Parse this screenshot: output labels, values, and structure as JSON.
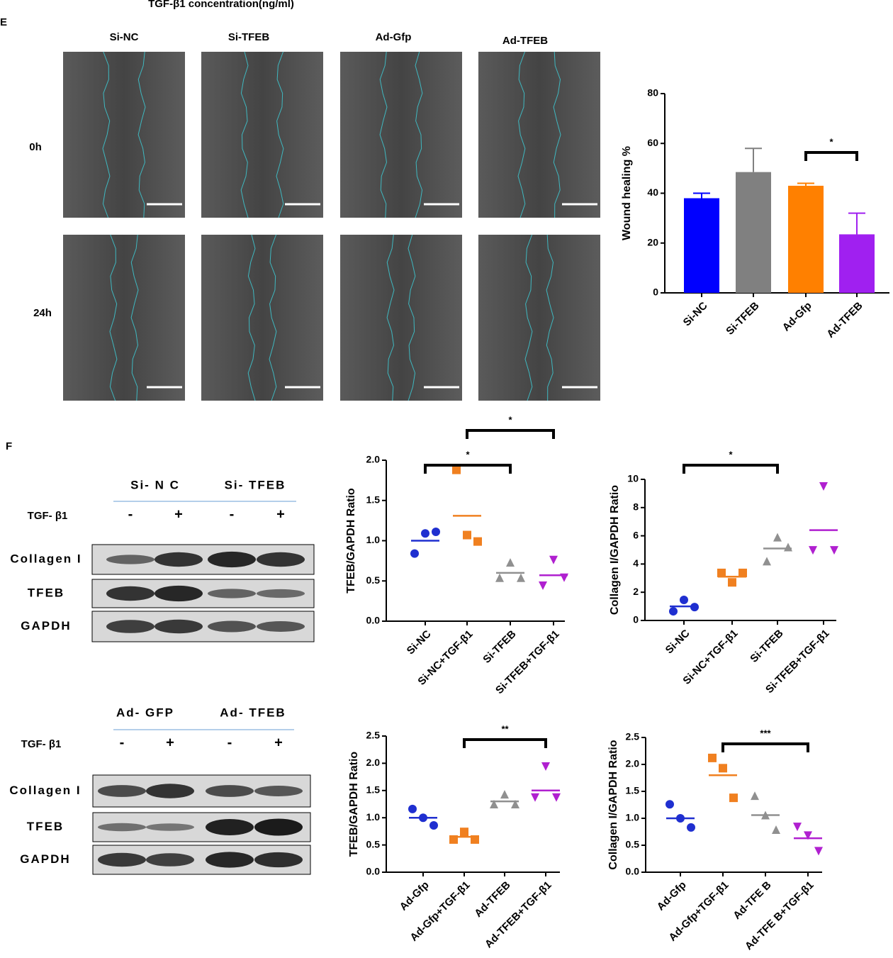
{
  "figure": {
    "top_caption": "TGF-β1 concentration(ng/ml)",
    "panel_e": {
      "label": "E",
      "columns": [
        "Si-NC",
        "Si-TFEB",
        "Ad-Gfp",
        "Ad-TFEB"
      ],
      "rows": [
        "0h",
        "24h"
      ]
    },
    "panel_f": {
      "label": "F",
      "blots": [
        {
          "groups": [
            "Si- N C",
            "Si- TFEB"
          ],
          "treatment": "TGF- β1",
          "signs": [
            "-",
            "+",
            "-",
            "+"
          ],
          "rows": [
            "Collagen I",
            "TFEB",
            "GAPDH"
          ]
        },
        {
          "groups": [
            "Ad- GFP",
            "Ad- TFEB"
          ],
          "treatment": "TGF- β1",
          "signs": [
            "-",
            "+",
            "-",
            "+"
          ],
          "rows": [
            "Collagen I",
            "TFEB",
            "GAPDH"
          ]
        }
      ]
    }
  },
  "chart_data": [
    {
      "type": "bar",
      "y_label": "Wound healing %",
      "categories": [
        "Si-NC",
        "Si-TFEB",
        "Ad-Gfp",
        "Ad-TFEB"
      ],
      "values": [
        38,
        48.5,
        43,
        23.5
      ],
      "errors": [
        2,
        9.5,
        1,
        8.5
      ],
      "colors": [
        "#0000ff",
        "#808080",
        "#ff8000",
        "#a020f0"
      ],
      "ylim": [
        0,
        80
      ],
      "yticks": [
        0,
        20,
        40,
        60,
        80
      ],
      "annotations": [
        {
          "text": "*",
          "between": [
            "Ad-Gfp",
            "Ad-TFEB"
          ]
        }
      ]
    },
    {
      "type": "dot",
      "y_label": "TFEB/GAPDH Ratio",
      "categories": [
        "Si-NC",
        "Si-NC+TGF-β1",
        "Si-TFEB",
        "Si-TFEB+TGF-β1"
      ],
      "points": [
        [
          0.84,
          1.09,
          1.11
        ],
        [
          1.88,
          1.07,
          0.99
        ],
        [
          0.54,
          0.73,
          0.54
        ],
        [
          0.44,
          0.76,
          0.54
        ]
      ],
      "means": [
        1.0,
        1.31,
        0.6,
        0.57
      ],
      "colors": [
        "#1f2fd0",
        "#f08020",
        "#909090",
        "#b020d0"
      ],
      "markers": [
        "circle",
        "square",
        "triangle",
        "triangle-down"
      ],
      "ylim": [
        0,
        2
      ],
      "yticks": [
        {
          "value": 0,
          "label": "0.0"
        },
        {
          "value": 0.5,
          "label": "0.5"
        },
        {
          "value": 1,
          "label": "1.0"
        },
        {
          "value": 1.5,
          "label": "1.5"
        },
        {
          "value": 2,
          "label": "2.0"
        }
      ],
      "annotations": [
        {
          "text": "*",
          "between": [
            "Si-NC",
            "Si-TFEB"
          ]
        },
        {
          "text": "*",
          "between": [
            "Si-NC+TGF-β1",
            "Si-TFEB+TGF-β1"
          ]
        }
      ]
    },
    {
      "type": "dot",
      "y_label": "Collagen I/GAPDH Ratio",
      "categories": [
        "Si-NC",
        "Si-NC+TGF-β1",
        "Si-TFEB",
        "Si-TFEB+TGF-β1"
      ],
      "points": [
        [
          0.65,
          1.46,
          0.95
        ],
        [
          3.37,
          2.7,
          3.37
        ],
        [
          4.2,
          5.9,
          5.2
        ],
        [
          4.97,
          9.5,
          4.97
        ]
      ],
      "means": [
        1.0,
        3.1,
        5.1,
        6.4
      ],
      "colors": [
        "#1f2fd0",
        "#f08020",
        "#909090",
        "#b020d0"
      ],
      "markers": [
        "circle",
        "square",
        "triangle",
        "triangle-down"
      ],
      "ylim": [
        0,
        10
      ],
      "yticks": [
        0,
        2,
        4,
        6,
        8,
        10
      ],
      "annotations": [
        {
          "text": "*",
          "between": [
            "Si-NC",
            "Si-TFEB"
          ]
        }
      ]
    },
    {
      "type": "dot",
      "y_label": "TFEB/GAPDH Ratio",
      "categories": [
        "Ad-Gfp",
        "Ad-Gfp+TGF-β1",
        "Ad-TFEB",
        "Ad-TFEB+TGF-β1"
      ],
      "points": [
        [
          1.16,
          1.0,
          0.86
        ],
        [
          0.6,
          0.74,
          0.6
        ],
        [
          1.25,
          1.43,
          1.25
        ],
        [
          1.37,
          1.94,
          1.37
        ]
      ],
      "means": [
        1.0,
        0.65,
        1.3,
        1.5
      ],
      "colors": [
        "#1f2fd0",
        "#f08020",
        "#909090",
        "#b020d0"
      ],
      "markers": [
        "circle",
        "square",
        "triangle",
        "triangle-down"
      ],
      "ylim": [
        0,
        2.5
      ],
      "yticks": [
        {
          "value": 0,
          "label": "0.0"
        },
        {
          "value": 0.5,
          "label": "0.5"
        },
        {
          "value": 1,
          "label": "1.0"
        },
        {
          "value": 1.5,
          "label": "1.5"
        },
        {
          "value": 2,
          "label": "2.0"
        },
        {
          "value": 2.5,
          "label": "2.5"
        }
      ],
      "annotations": [
        {
          "text": "**",
          "between": [
            "Ad-Gfp+TGF-β1",
            "Ad-TFEB+TGF-β1"
          ]
        }
      ]
    },
    {
      "type": "dot",
      "y_label": "Collagen I/GAPDH Ratio",
      "categories": [
        "Ad-Gfp",
        "Ad-Gfp+TGF-β1",
        "Ad-TFE B",
        "Ad-TFE B+TGF-β1"
      ],
      "points": [
        [
          1.26,
          1.0,
          0.83
        ],
        [
          2.12,
          1.93,
          1.38
        ],
        [
          1.42,
          1.06,
          0.79
        ],
        [
          0.84,
          0.68,
          0.39
        ]
      ],
      "means": [
        1.0,
        1.8,
        1.06,
        0.63
      ],
      "colors": [
        "#1f2fd0",
        "#f08020",
        "#909090",
        "#b020d0"
      ],
      "markers": [
        "circle",
        "square",
        "triangle",
        "triangle-down"
      ],
      "ylim": [
        0,
        2.5
      ],
      "yticks": [
        {
          "value": 0,
          "label": "0.0"
        },
        {
          "value": 0.5,
          "label": "0.5"
        },
        {
          "value": 1,
          "label": "1.0"
        },
        {
          "value": 1.5,
          "label": "1.5"
        },
        {
          "value": 2,
          "label": "2.0"
        },
        {
          "value": 2.5,
          "label": "2.5"
        }
      ],
      "annotations": [
        {
          "text": "***",
          "between": [
            "Ad-Gfp+TGF-β1",
            "Ad-TFE B+TGF-β1"
          ]
        }
      ]
    }
  ]
}
